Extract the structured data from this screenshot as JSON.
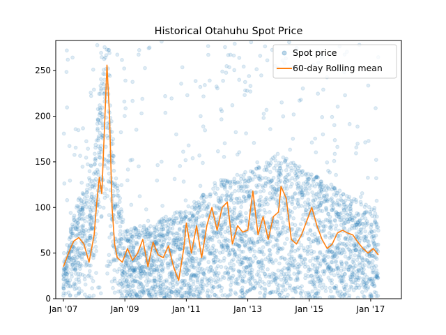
{
  "chart_data": {
    "type": "scatter",
    "title": "Historical Otahuhu Spot Price",
    "xlabel": "",
    "ylabel": "",
    "x_start": "2007-01",
    "x_end": "2017-04",
    "xlim": [
      "2006-10",
      "2018-01"
    ],
    "ylim": [
      0,
      283
    ],
    "x_tick_labels": [
      "Jan '07",
      "Jan '09",
      "Jan '11",
      "Jan '13",
      "Jan '15",
      "Jan '17"
    ],
    "x_tick_dates": [
      "2007-01",
      "2009-01",
      "2011-01",
      "2013-01",
      "2015-01",
      "2017-01"
    ],
    "y_ticks": [
      0,
      50,
      100,
      150,
      200,
      250
    ],
    "grid": false,
    "legend": {
      "position": "top-right"
    },
    "series": [
      {
        "name": "Spot price",
        "kind": "scatter",
        "color": "#1f77b4",
        "opacity": 0.15,
        "note_bands": [
          {
            "date": "2007-01",
            "low": 12,
            "high": 48
          },
          {
            "date": "2007-07",
            "low": 30,
            "high": 110
          },
          {
            "date": "2008-01",
            "low": 35,
            "high": 145
          },
          {
            "date": "2008-03",
            "low": 110,
            "high": 230
          },
          {
            "date": "2008-06",
            "low": 150,
            "high": 283
          },
          {
            "date": "2008-09",
            "low": 30,
            "high": 150
          },
          {
            "date": "2009-01",
            "low": 10,
            "high": 75
          },
          {
            "date": "2010-01",
            "low": 10,
            "high": 85
          },
          {
            "date": "2011-01",
            "low": 10,
            "high": 100
          },
          {
            "date": "2012-01",
            "low": 20,
            "high": 130
          },
          {
            "date": "2013-01",
            "low": 20,
            "high": 140
          },
          {
            "date": "2014-01",
            "low": 20,
            "high": 160
          },
          {
            "date": "2015-01",
            "low": 20,
            "high": 140
          },
          {
            "date": "2016-01",
            "low": 20,
            "high": 120
          },
          {
            "date": "2017-01",
            "low": 15,
            "high": 100
          }
        ]
      },
      {
        "name": "60-day Rolling mean",
        "kind": "line",
        "color": "#ff7f0e",
        "points": [
          [
            "2007-01",
            35
          ],
          [
            "2007-03",
            50
          ],
          [
            "2007-05",
            63
          ],
          [
            "2007-07",
            67
          ],
          [
            "2007-09",
            60
          ],
          [
            "2007-11",
            40
          ],
          [
            "2008-01",
            70
          ],
          [
            "2008-02",
            105
          ],
          [
            "2008-03",
            133
          ],
          [
            "2008-04",
            115
          ],
          [
            "2008-05",
            185
          ],
          [
            "2008-06",
            256
          ],
          [
            "2008-07",
            200
          ],
          [
            "2008-08",
            100
          ],
          [
            "2008-09",
            60
          ],
          [
            "2008-10",
            45
          ],
          [
            "2008-12",
            40
          ],
          [
            "2009-02",
            55
          ],
          [
            "2009-04",
            42
          ],
          [
            "2009-06",
            50
          ],
          [
            "2009-08",
            65
          ],
          [
            "2009-10",
            35
          ],
          [
            "2009-12",
            62
          ],
          [
            "2010-02",
            48
          ],
          [
            "2010-04",
            45
          ],
          [
            "2010-06",
            58
          ],
          [
            "2010-08",
            35
          ],
          [
            "2010-10",
            20
          ],
          [
            "2010-12",
            55
          ],
          [
            "2011-01",
            83
          ],
          [
            "2011-03",
            50
          ],
          [
            "2011-05",
            80
          ],
          [
            "2011-07",
            45
          ],
          [
            "2011-09",
            80
          ],
          [
            "2011-11",
            100
          ],
          [
            "2012-01",
            75
          ],
          [
            "2012-03",
            100
          ],
          [
            "2012-05",
            106
          ],
          [
            "2012-07",
            60
          ],
          [
            "2012-09",
            80
          ],
          [
            "2012-11",
            73
          ],
          [
            "2013-01",
            75
          ],
          [
            "2013-03",
            118
          ],
          [
            "2013-05",
            70
          ],
          [
            "2013-07",
            90
          ],
          [
            "2013-09",
            65
          ],
          [
            "2013-11",
            90
          ],
          [
            "2014-01",
            95
          ],
          [
            "2014-02",
            123
          ],
          [
            "2014-04",
            110
          ],
          [
            "2014-06",
            65
          ],
          [
            "2014-08",
            60
          ],
          [
            "2014-10",
            70
          ],
          [
            "2014-12",
            85
          ],
          [
            "2015-02",
            100
          ],
          [
            "2015-04",
            80
          ],
          [
            "2015-06",
            65
          ],
          [
            "2015-08",
            55
          ],
          [
            "2015-10",
            60
          ],
          [
            "2015-12",
            72
          ],
          [
            "2016-02",
            75
          ],
          [
            "2016-04",
            72
          ],
          [
            "2016-06",
            70
          ],
          [
            "2016-08",
            62
          ],
          [
            "2016-10",
            55
          ],
          [
            "2016-12",
            50
          ],
          [
            "2017-02",
            55
          ],
          [
            "2017-04",
            48
          ]
        ]
      }
    ]
  }
}
